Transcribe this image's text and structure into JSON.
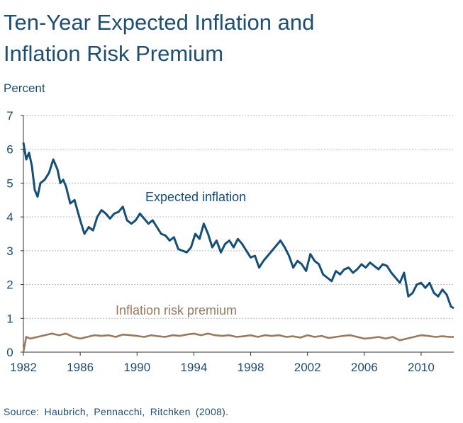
{
  "title_lines": [
    "Ten-Year Expected Inflation and",
    "Inflation Risk Premium"
  ],
  "ylabel": "Percent",
  "source": "Source: Haubrich, Pennacchi, Ritchken (2008).",
  "colors": {
    "text": "#1f4e6e",
    "expected_inflation": "#164f75",
    "risk_premium": "#957a5e",
    "grid": "#b8b8b8"
  },
  "chart_data": {
    "type": "line",
    "title": "Ten-Year Expected Inflation and Inflation Risk Premium",
    "ylabel": "Percent",
    "xlabel": "",
    "xlim": [
      1982,
      2012.3
    ],
    "ylim": [
      0,
      7
    ],
    "xticks": [
      "1982",
      "1986",
      "1990",
      "1994",
      "1998",
      "2002",
      "2006",
      "2010"
    ],
    "yticks": [
      "0",
      "1",
      "2",
      "3",
      "4",
      "5",
      "6",
      "7"
    ],
    "grid": "horizontal dashed",
    "series": [
      {
        "name": "Expected inflation",
        "x": [
          1982.0,
          1982.2,
          1982.4,
          1982.6,
          1982.8,
          1983.0,
          1983.2,
          1983.5,
          1983.8,
          1984.1,
          1984.4,
          1984.6,
          1984.8,
          1985.0,
          1985.3,
          1985.6,
          1986.0,
          1986.3,
          1986.6,
          1986.9,
          1987.2,
          1987.5,
          1987.8,
          1988.1,
          1988.4,
          1988.7,
          1989.0,
          1989.3,
          1989.6,
          1989.9,
          1990.2,
          1990.5,
          1990.8,
          1991.1,
          1991.4,
          1991.7,
          1992.0,
          1992.3,
          1992.6,
          1992.9,
          1993.2,
          1993.5,
          1993.8,
          1994.1,
          1994.4,
          1994.7,
          1995.0,
          1995.3,
          1995.6,
          1995.9,
          1996.2,
          1996.5,
          1996.8,
          1997.1,
          1997.4,
          1997.7,
          1998.0,
          1998.3,
          1998.6,
          1998.9,
          1999.2,
          1999.5,
          1999.8,
          2000.1,
          2000.4,
          2000.7,
          2001.0,
          2001.3,
          2001.6,
          2001.9,
          2002.2,
          2002.5,
          2002.8,
          2003.1,
          2003.4,
          2003.7,
          2004.0,
          2004.3,
          2004.6,
          2004.9,
          2005.2,
          2005.5,
          2005.8,
          2006.1,
          2006.4,
          2006.7,
          2007.0,
          2007.3,
          2007.6,
          2007.9,
          2008.2,
          2008.5,
          2008.8,
          2009.1,
          2009.4,
          2009.7,
          2010.0,
          2010.3,
          2010.6,
          2010.9,
          2011.2,
          2011.5,
          2011.8,
          2012.1,
          2012.3
        ],
        "y": [
          6.2,
          5.7,
          5.9,
          5.5,
          4.8,
          4.6,
          5.0,
          5.1,
          5.3,
          5.7,
          5.4,
          5.0,
          5.1,
          4.9,
          4.4,
          4.5,
          3.9,
          3.5,
          3.7,
          3.6,
          4.0,
          4.2,
          4.1,
          3.95,
          4.1,
          4.15,
          4.3,
          3.9,
          3.8,
          3.9,
          4.1,
          3.95,
          3.8,
          3.9,
          3.7,
          3.5,
          3.45,
          3.3,
          3.4,
          3.05,
          3.0,
          2.95,
          3.1,
          3.5,
          3.35,
          3.8,
          3.5,
          3.1,
          3.3,
          2.95,
          3.2,
          3.3,
          3.1,
          3.35,
          3.2,
          3.0,
          2.8,
          2.85,
          2.5,
          2.7,
          2.85,
          3.0,
          3.15,
          3.3,
          3.1,
          2.85,
          2.5,
          2.7,
          2.6,
          2.4,
          2.9,
          2.7,
          2.6,
          2.3,
          2.2,
          2.1,
          2.4,
          2.3,
          2.45,
          2.5,
          2.35,
          2.45,
          2.6,
          2.5,
          2.65,
          2.55,
          2.45,
          2.6,
          2.55,
          2.35,
          2.2,
          2.05,
          2.35,
          1.65,
          1.75,
          2.0,
          2.05,
          1.9,
          2.05,
          1.75,
          1.65,
          1.85,
          1.7,
          1.35,
          1.3
        ]
      },
      {
        "name": "Inflation risk premium",
        "x": [
          1982.0,
          1982.2,
          1982.5,
          1983.0,
          1983.5,
          1984.0,
          1984.5,
          1985.0,
          1985.5,
          1986.0,
          1986.5,
          1987.0,
          1987.5,
          1988.0,
          1988.5,
          1989.0,
          1989.5,
          1990.0,
          1990.5,
          1991.0,
          1991.5,
          1992.0,
          1992.5,
          1993.0,
          1993.5,
          1994.0,
          1994.5,
          1995.0,
          1995.5,
          1996.0,
          1996.5,
          1997.0,
          1997.5,
          1998.0,
          1998.5,
          1999.0,
          1999.5,
          2000.0,
          2000.5,
          2001.0,
          2001.5,
          2002.0,
          2002.5,
          2003.0,
          2003.5,
          2004.0,
          2004.5,
          2005.0,
          2005.5,
          2006.0,
          2006.5,
          2007.0,
          2007.5,
          2008.0,
          2008.5,
          2009.0,
          2009.5,
          2010.0,
          2010.5,
          2011.0,
          2011.5,
          2012.0,
          2012.3
        ],
        "y": [
          0.0,
          0.45,
          0.4,
          0.45,
          0.5,
          0.55,
          0.5,
          0.55,
          0.45,
          0.4,
          0.45,
          0.5,
          0.48,
          0.5,
          0.45,
          0.52,
          0.5,
          0.48,
          0.45,
          0.5,
          0.47,
          0.45,
          0.5,
          0.48,
          0.52,
          0.55,
          0.5,
          0.55,
          0.5,
          0.48,
          0.5,
          0.45,
          0.47,
          0.5,
          0.45,
          0.5,
          0.48,
          0.5,
          0.45,
          0.47,
          0.43,
          0.5,
          0.45,
          0.48,
          0.42,
          0.45,
          0.48,
          0.5,
          0.45,
          0.4,
          0.42,
          0.45,
          0.4,
          0.45,
          0.35,
          0.4,
          0.45,
          0.5,
          0.48,
          0.45,
          0.47,
          0.45,
          0.45
        ]
      }
    ]
  }
}
